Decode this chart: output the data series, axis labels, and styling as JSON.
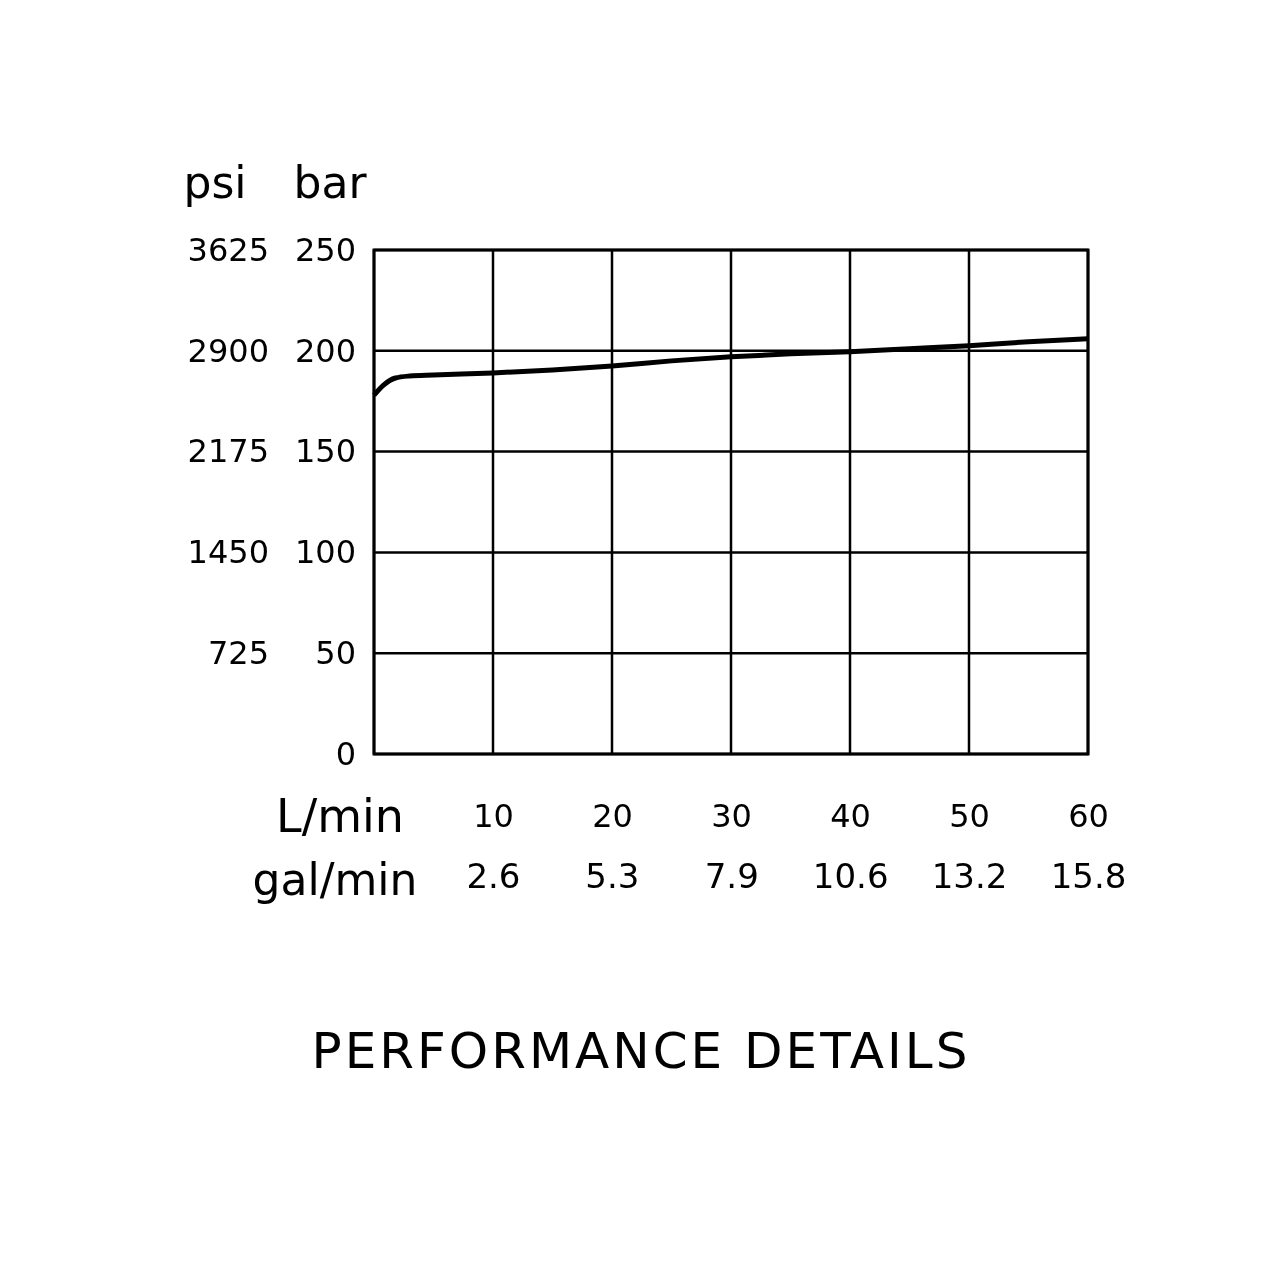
{
  "chart_data": {
    "type": "line",
    "title": "PERFORMANCE DETAILS",
    "xlabel": "L/min",
    "x2label": "gal/min",
    "ylabel": "bar",
    "y2label": "psi",
    "x": [
      0,
      0.8,
      1.8,
      3,
      5,
      10,
      15,
      20,
      25,
      30,
      35,
      40,
      45,
      50,
      55,
      60
    ],
    "series": [
      {
        "color": "#000000",
        "values": [
          178,
          183,
          186.5,
          187.5,
          188,
          189,
          190.5,
          192.5,
          195,
          197,
          198.5,
          199.5,
          201,
          202.5,
          204.5,
          206
        ]
      }
    ],
    "xlim": [
      0,
      60
    ],
    "xticks": [
      {
        "value": 0,
        "label": null
      },
      10,
      20,
      30,
      40,
      50,
      60
    ],
    "x2lim": [
      0,
      15.85
    ],
    "x2ticks": [
      {
        "value": 2.64,
        "label": "2.6"
      },
      {
        "value": 5.28,
        "label": "5.3"
      },
      {
        "value": 7.93,
        "label": "7.9"
      },
      {
        "value": 10.57,
        "label": "10.6"
      },
      {
        "value": 13.21,
        "label": "13.2"
      },
      {
        "value": 15.85,
        "label": "15.8"
      }
    ],
    "ylim": [
      0,
      250
    ],
    "yticks": [
      0,
      50,
      100,
      150,
      200,
      250
    ],
    "y2lim": [
      0,
      3625
    ],
    "y2ticks": [
      725,
      1450,
      2175,
      2900,
      3625
    ],
    "grid": true,
    "marker": "none",
    "line_style": "solid"
  }
}
